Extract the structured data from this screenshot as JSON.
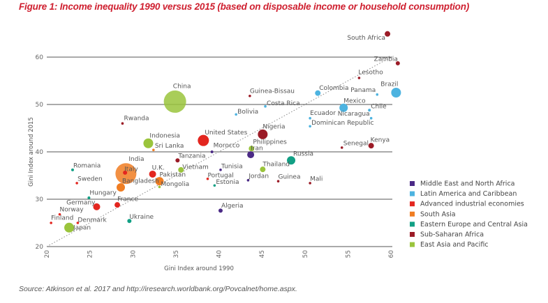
{
  "title": "Figure 1: Income inequality 1990 versus 2015 (based on disposable income or household consumption)",
  "source": "Source: Atkinson et al. 2017 and http://iresearch.worldbank.org/Povcalnet/home.aspx.",
  "chart_data": {
    "type": "scatter",
    "xlabel": "Gini Index around 1990",
    "ylabel": "Gini Index around 2015",
    "xlim": [
      20,
      60
    ],
    "ylim": [
      20,
      60
    ],
    "xticks": [
      20,
      25,
      30,
      35,
      40,
      45,
      50,
      55,
      60
    ],
    "yticks": [
      20,
      30,
      40,
      50,
      60
    ],
    "grid": "horizontal",
    "reference_line": "45-degree dotted line (2015 = 1990)",
    "legend_position": "right",
    "groups": [
      {
        "name": "Middle East and North Africa",
        "color": "#4b2a86"
      },
      {
        "name": "Latin America and Caribbean",
        "color": "#4db3e0"
      },
      {
        "name": "Advanced industrial economies",
        "color": "#e3261f"
      },
      {
        "name": "South Asia",
        "color": "#f07d22"
      },
      {
        "name": "Eastern Europe and Central Asia",
        "color": "#12a085"
      },
      {
        "name": "Sub-Saharan Africa",
        "color": "#9b1b26"
      },
      {
        "name": "East Asia and Pacific",
        "color": "#9ac43c"
      }
    ],
    "points": [
      {
        "name": "South Africa",
        "group": 5,
        "x": 59.6,
        "y": 64.9,
        "size": 4
      },
      {
        "name": "Zambia",
        "group": 5,
        "x": 60.8,
        "y": 58.7,
        "size": 3
      },
      {
        "name": "Lesotho",
        "group": 5,
        "x": 56.3,
        "y": 55.6,
        "size": 1
      },
      {
        "name": "Brazil",
        "group": 1,
        "x": 60.6,
        "y": 52.5,
        "size": 7
      },
      {
        "name": "Panama",
        "group": 1,
        "x": 58.4,
        "y": 52.1,
        "size": 1
      },
      {
        "name": "Colombia",
        "group": 1,
        "x": 51.5,
        "y": 52.4,
        "size": 4
      },
      {
        "name": "Guinea-Bissau",
        "group": 5,
        "x": 43.6,
        "y": 51.8,
        "size": 1
      },
      {
        "name": "Costa Rica",
        "group": 1,
        "x": 45.4,
        "y": 49.6,
        "size": 1
      },
      {
        "name": "Bolivia",
        "group": 1,
        "x": 42.0,
        "y": 47.9,
        "size": 1
      },
      {
        "name": "Mexico",
        "group": 1,
        "x": 54.5,
        "y": 49.3,
        "size": 6
      },
      {
        "name": "Chile",
        "group": 1,
        "x": 57.5,
        "y": 48.8,
        "size": 2
      },
      {
        "name": "Nicaragua",
        "group": 1,
        "x": 57.7,
        "y": 47.1,
        "size": 1
      },
      {
        "name": "Ecuador",
        "group": 1,
        "x": 50.6,
        "y": 47.1,
        "size": 1
      },
      {
        "name": "Dominican Republic",
        "group": 1,
        "x": 50.6,
        "y": 45.4,
        "size": 1
      },
      {
        "name": "China",
        "group": 6,
        "x": 34.9,
        "y": 50.6,
        "size": 16
      },
      {
        "name": "Rwanda",
        "group": 5,
        "x": 28.8,
        "y": 46.0,
        "size": 1
      },
      {
        "name": "Indonesia",
        "group": 6,
        "x": 31.8,
        "y": 41.8,
        "size": 7
      },
      {
        "name": "Sri Lanka",
        "group": 3,
        "x": 32.4,
        "y": 40.4,
        "size": 1
      },
      {
        "name": "United States",
        "group": 2,
        "x": 38.2,
        "y": 42.4,
        "size": 8
      },
      {
        "name": "Nigeria",
        "group": 5,
        "x": 45.1,
        "y": 43.7,
        "size": 7
      },
      {
        "name": "Morocco",
        "group": 0,
        "x": 39.2,
        "y": 40.0,
        "size": 2
      },
      {
        "name": "Philippines",
        "group": 6,
        "x": 43.8,
        "y": 40.7,
        "size": 4
      },
      {
        "name": "Iran",
        "group": 0,
        "x": 43.7,
        "y": 39.4,
        "size": 5
      },
      {
        "name": "Senegal",
        "group": 5,
        "x": 54.3,
        "y": 40.9,
        "size": 1
      },
      {
        "name": "Kenya",
        "group": 5,
        "x": 57.7,
        "y": 41.3,
        "size": 4
      },
      {
        "name": "Russia",
        "group": 4,
        "x": 48.4,
        "y": 38.2,
        "size": 6
      },
      {
        "name": "Tanzania",
        "group": 5,
        "x": 35.2,
        "y": 38.2,
        "size": 3
      },
      {
        "name": "India",
        "group": 3,
        "x": 29.2,
        "y": 35.4,
        "size": 15
      },
      {
        "name": "Italy",
        "group": 2,
        "x": 29.1,
        "y": 35.6,
        "size": 3
      },
      {
        "name": "U.K.",
        "group": 2,
        "x": 32.3,
        "y": 35.3,
        "size": 5
      },
      {
        "name": "Vietnam",
        "group": 6,
        "x": 35.6,
        "y": 36.2,
        "size": 4
      },
      {
        "name": "Tunisia",
        "group": 0,
        "x": 40.2,
        "y": 36.2,
        "size": 1
      },
      {
        "name": "Thailand",
        "group": 6,
        "x": 45.1,
        "y": 36.3,
        "size": 4
      },
      {
        "name": "Pakistan",
        "group": 3,
        "x": 33.1,
        "y": 33.8,
        "size": 6
      },
      {
        "name": "Mongolia",
        "group": 6,
        "x": 33.1,
        "y": 32.6,
        "size": 1
      },
      {
        "name": "Bangladesh",
        "group": 3,
        "x": 28.6,
        "y": 32.5,
        "size": 6
      },
      {
        "name": "Portugal",
        "group": 2,
        "x": 38.7,
        "y": 34.3,
        "size": 1
      },
      {
        "name": "Estonia",
        "group": 4,
        "x": 39.5,
        "y": 32.9,
        "size": 1
      },
      {
        "name": "Jordan",
        "group": 0,
        "x": 43.4,
        "y": 34.0,
        "size": 1
      },
      {
        "name": "Guinea",
        "group": 5,
        "x": 46.9,
        "y": 33.8,
        "size": 1
      },
      {
        "name": "Mali",
        "group": 5,
        "x": 50.6,
        "y": 33.4,
        "size": 1
      },
      {
        "name": "Romania",
        "group": 4,
        "x": 23.0,
        "y": 36.2,
        "size": 2
      },
      {
        "name": "Sweden",
        "group": 2,
        "x": 23.5,
        "y": 33.4,
        "size": 1
      },
      {
        "name": "Hungary",
        "group": 4,
        "x": 24.9,
        "y": 30.3,
        "size": 2
      },
      {
        "name": "Germany",
        "group": 2,
        "x": 25.8,
        "y": 28.4,
        "size": 5
      },
      {
        "name": "France",
        "group": 2,
        "x": 28.2,
        "y": 28.8,
        "size": 4
      },
      {
        "name": "Norway",
        "group": 2,
        "x": 21.5,
        "y": 26.8,
        "size": 1
      },
      {
        "name": "Finland",
        "group": 2,
        "x": 20.5,
        "y": 25.0,
        "size": 1
      },
      {
        "name": "Denmark",
        "group": 2,
        "x": 23.6,
        "y": 25.0,
        "size": 1
      },
      {
        "name": "Japan",
        "group": 6,
        "x": 22.6,
        "y": 24.0,
        "size": 7
      },
      {
        "name": "Ukraine",
        "group": 4,
        "x": 29.6,
        "y": 25.4,
        "size": 3
      },
      {
        "name": "Algeria",
        "group": 0,
        "x": 40.2,
        "y": 27.6,
        "size": 3
      }
    ]
  }
}
